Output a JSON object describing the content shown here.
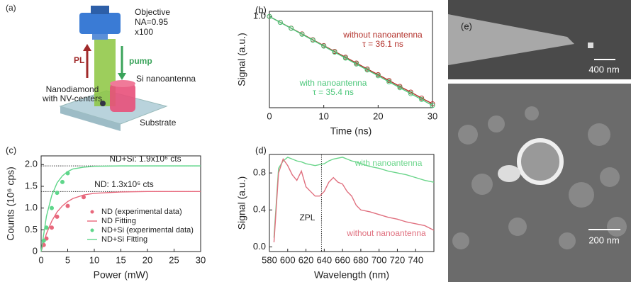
{
  "panel_a": {
    "label": "(a)",
    "objective": [
      "Objective",
      "NA=0.95",
      "x100"
    ],
    "pl": "PL",
    "pump": "pump",
    "antenna": "Si nanoantenna",
    "nanodiamond": [
      "Nanodiamond",
      "with NV-centers"
    ],
    "substrate": "Substrate"
  },
  "chart_data": [
    {
      "type": "line",
      "panel": "(b)",
      "xlabel": "Time (ns)",
      "ylabel": "Signal (a.u.)",
      "ylog": true,
      "xlim": [
        0,
        30
      ],
      "ylim": [
        0.42,
        1.05
      ],
      "xticks": [
        0,
        10,
        20,
        30
      ],
      "yticks": [
        {
          "value": 1,
          "label": "1.0"
        }
      ],
      "x": [
        0,
        2,
        4,
        6,
        8,
        10,
        12,
        14,
        16,
        18,
        20,
        22,
        24,
        26,
        28,
        30
      ],
      "series": [
        {
          "name": "without nanoantenna",
          "annotation": "τ = 36.1 ns",
          "color": "#b3322c",
          "markers": true,
          "values": [
            1,
            0.946,
            0.895,
            0.847,
            0.801,
            0.758,
            0.717,
            0.679,
            0.642,
            0.607,
            0.575,
            0.544,
            0.514,
            0.487,
            0.46,
            0.436
          ]
        },
        {
          "name": "with nanoantenna",
          "annotation": "τ = 35.4 ns",
          "color": "#4cc77a",
          "markers": true,
          "values": [
            1,
            0.945,
            0.893,
            0.844,
            0.798,
            0.754,
            0.712,
            0.673,
            0.636,
            0.601,
            0.569,
            0.537,
            0.508,
            0.48,
            0.454,
            0.429
          ]
        }
      ]
    },
    {
      "type": "scatter-fit",
      "panel": "(c)",
      "xlabel": "Power (mW)",
      "ylabel": "Counts (10⁶ cps)",
      "legend": "lower right",
      "xlim": [
        0,
        30
      ],
      "ylim": [
        0,
        2.2
      ],
      "xticks": [
        0,
        5,
        10,
        15,
        20,
        25,
        30
      ],
      "yticks": [
        0,
        0.5,
        {
          "value": 1,
          "label": "1.0"
        },
        1.5,
        {
          "value": 2,
          "label": "2.0"
        }
      ],
      "hlines": [
        1.97,
        1.38
      ],
      "annotations": [
        "ND+Si: 1.9x10⁶ cts",
        "ND: 1.3x10⁶ cts"
      ],
      "series": [
        {
          "name": "ND (experimental data)",
          "mode": "points",
          "color": "#e8687c",
          "x": [
            0.5,
            1,
            2,
            3,
            5,
            8
          ],
          "values": [
            0.15,
            0.3,
            0.55,
            0.8,
            1.05,
            1.25
          ]
        },
        {
          "name": "ND Fitting",
          "mode": "line",
          "color": "#e8687c",
          "x": [
            0,
            1,
            2,
            3,
            4,
            5,
            6,
            8,
            10,
            15,
            20,
            25,
            30
          ],
          "values": [
            0,
            0.41,
            0.7,
            0.91,
            1.05,
            1.15,
            1.22,
            1.3,
            1.34,
            1.37,
            1.38,
            1.38,
            1.38
          ]
        },
        {
          "name": "ND+Si (experimental data)",
          "mode": "points",
          "color": "#5fd68a",
          "x": [
            0.5,
            1,
            2,
            3,
            4,
            5
          ],
          "values": [
            0.25,
            0.55,
            1,
            1.35,
            1.6,
            1.8
          ]
        },
        {
          "name": "ND+Si Fitting",
          "mode": "line",
          "color": "#5fd68a",
          "x": [
            0,
            1,
            2,
            3,
            4,
            5,
            6,
            8,
            10,
            15,
            20,
            25,
            30
          ],
          "values": [
            0,
            0.81,
            1.29,
            1.58,
            1.74,
            1.84,
            1.9,
            1.94,
            1.96,
            1.97,
            1.97,
            1.97,
            1.97
          ]
        }
      ]
    },
    {
      "type": "line",
      "panel": "(d)",
      "xlabel": "Wavelength (nm)",
      "ylabel": "Signal (a.u.)",
      "xlim": [
        580,
        760
      ],
      "ylim": [
        -0.05,
        1
      ],
      "xticks": [
        580,
        600,
        620,
        640,
        660,
        680,
        700,
        720,
        740
      ],
      "yticks": [
        {
          "value": 0,
          "label": "0.0"
        },
        0.4,
        0.8
      ],
      "vline": 637,
      "vline_label": "ZPL",
      "x": [
        585,
        590,
        595,
        600,
        605,
        610,
        615,
        620,
        625,
        630,
        635,
        640,
        645,
        650,
        655,
        660,
        665,
        670,
        675,
        680,
        690,
        700,
        710,
        720,
        730,
        740,
        750,
        760
      ],
      "series": [
        {
          "name": "with nanoantenna",
          "color": "#6ad58a",
          "values": [
            0.1,
            0.85,
            0.93,
            0.97,
            0.95,
            0.93,
            0.92,
            0.9,
            0.89,
            0.88,
            0.89,
            0.9,
            0.93,
            0.95,
            0.96,
            0.97,
            0.95,
            0.93,
            0.92,
            0.9,
            0.87,
            0.85,
            0.82,
            0.8,
            0.78,
            0.75,
            0.72,
            0.7
          ]
        },
        {
          "name": "without nanoantenna",
          "color": "#e0707f",
          "values": [
            0.05,
            0.8,
            0.95,
            0.88,
            0.78,
            0.72,
            0.82,
            0.65,
            0.6,
            0.55,
            0.55,
            0.6,
            0.7,
            0.75,
            0.7,
            0.68,
            0.6,
            0.55,
            0.45,
            0.4,
            0.38,
            0.35,
            0.32,
            0.3,
            0.27,
            0.25,
            0.23,
            0.18
          ]
        }
      ]
    }
  ],
  "panel_e": {
    "label": "(e)",
    "scale_top": "400 nm",
    "scale_bottom": "200 nm"
  }
}
